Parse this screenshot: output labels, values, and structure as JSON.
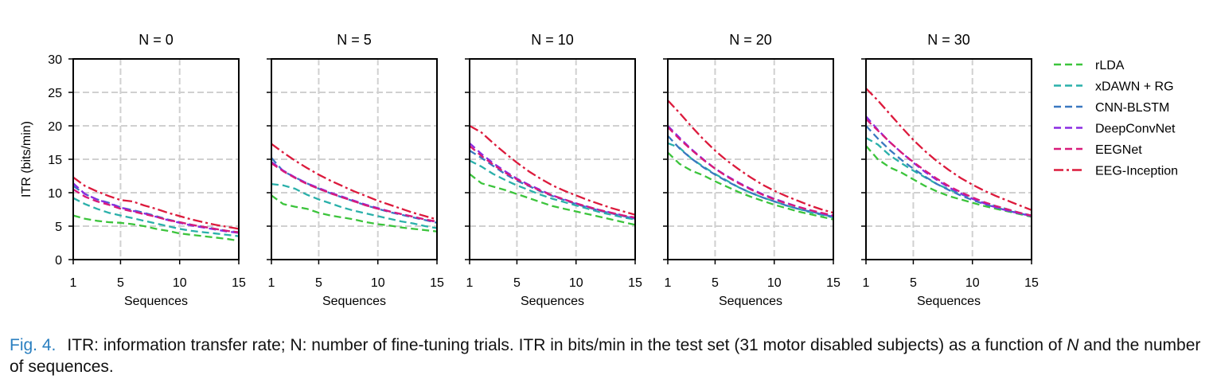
{
  "figure": {
    "ylabel": "ITR (bits/min)",
    "xlabel": "Sequences",
    "yticks": [
      0,
      5,
      10,
      15,
      20,
      25,
      30
    ],
    "xticks": [
      1,
      5,
      10,
      15
    ]
  },
  "caption": {
    "label": "Fig. 4.",
    "text_before": "ITR: information transfer rate; N: number of fine-tuning trials. ITR in bits/min in the test set (31 motor disabled subjects) as a function of",
    "italic_n": "N",
    "text_after": "and the number of sequences."
  },
  "legend": [
    {
      "name": "rLDA",
      "color": "#3cc43c",
      "dash": "dashed"
    },
    {
      "name": "xDAWN + RG",
      "color": "#2ab0aa",
      "dash": "dashed"
    },
    {
      "name": "CNN-BLSTM",
      "color": "#3a78c0",
      "dash": "dashed"
    },
    {
      "name": "DeepConvNet",
      "color": "#8a2be2",
      "dash": "dashed"
    },
    {
      "name": "EEGNet",
      "color": "#d81b7a",
      "dash": "dashed"
    },
    {
      "name": "EEG-Inception",
      "color": "#dc1a3c",
      "dash": "dashdot"
    }
  ],
  "chart_data": [
    {
      "type": "line",
      "title": "N = 0",
      "xlabel": "Sequences",
      "ylabel": "ITR (bits/min)",
      "x": [
        1,
        2,
        3,
        4,
        5,
        6,
        7,
        8,
        9,
        10,
        11,
        12,
        13,
        14,
        15
      ],
      "xlim": [
        1,
        15
      ],
      "ylim": [
        0,
        30
      ],
      "grid": true,
      "series": [
        {
          "name": "rLDA",
          "values": [
            6.6,
            6.1,
            5.8,
            5.6,
            5.5,
            5.3,
            5.0,
            4.6,
            4.3,
            3.9,
            3.7,
            3.5,
            3.3,
            3.1,
            2.8
          ]
        },
        {
          "name": "xDAWN + RG",
          "values": [
            9.2,
            8.3,
            7.6,
            7.0,
            6.6,
            6.2,
            5.8,
            5.4,
            5.0,
            4.6,
            4.3,
            4.1,
            3.9,
            3.7,
            3.5
          ]
        },
        {
          "name": "CNN-BLSTM",
          "values": [
            11.0,
            9.8,
            9.0,
            8.5,
            7.8,
            7.4,
            7.0,
            6.5,
            6.0,
            5.6,
            5.2,
            4.9,
            4.6,
            4.3,
            4.1
          ]
        },
        {
          "name": "DeepConvNet",
          "values": [
            11.4,
            9.8,
            9.0,
            8.4,
            7.8,
            7.3,
            6.9,
            6.4,
            5.9,
            5.5,
            5.1,
            4.8,
            4.5,
            4.2,
            4.0
          ]
        },
        {
          "name": "EEGNet",
          "values": [
            10.5,
            9.4,
            8.7,
            8.2,
            7.6,
            7.2,
            6.8,
            6.4,
            5.9,
            5.6,
            5.2,
            4.9,
            4.6,
            4.3,
            4.1
          ]
        },
        {
          "name": "EEG-Inception",
          "values": [
            12.3,
            11.0,
            10.2,
            9.5,
            8.9,
            8.7,
            8.1,
            7.6,
            7.0,
            6.5,
            6.0,
            5.6,
            5.2,
            4.9,
            4.6
          ]
        }
      ]
    },
    {
      "type": "line",
      "title": "N = 5",
      "xlabel": "Sequences",
      "ylabel": "ITR (bits/min)",
      "x": [
        1,
        2,
        3,
        4,
        5,
        6,
        7,
        8,
        9,
        10,
        11,
        12,
        13,
        14,
        15
      ],
      "xlim": [
        1,
        15
      ],
      "ylim": [
        0,
        30
      ],
      "grid": true,
      "series": [
        {
          "name": "rLDA",
          "values": [
            9.6,
            8.3,
            7.9,
            7.6,
            7.0,
            6.6,
            6.3,
            6.0,
            5.6,
            5.3,
            5.1,
            4.8,
            4.6,
            4.4,
            4.2
          ]
        },
        {
          "name": "xDAWN + RG",
          "values": [
            11.3,
            11.1,
            10.6,
            9.7,
            9.0,
            8.4,
            7.8,
            7.3,
            6.9,
            6.5,
            6.1,
            5.7,
            5.4,
            5.0,
            4.7
          ]
        },
        {
          "name": "CNN-BLSTM",
          "values": [
            15.2,
            13.2,
            12.3,
            11.4,
            10.6,
            9.9,
            9.3,
            8.7,
            8.1,
            7.6,
            7.1,
            6.7,
            6.3,
            5.9,
            5.5
          ]
        },
        {
          "name": "DeepConvNet",
          "values": [
            14.6,
            13.3,
            12.3,
            11.4,
            10.7,
            10.0,
            9.4,
            8.8,
            8.2,
            7.7,
            7.2,
            6.8,
            6.4,
            6.0,
            5.6
          ]
        },
        {
          "name": "EEGNet",
          "values": [
            14.4,
            13.2,
            12.2,
            11.3,
            10.6,
            9.9,
            9.3,
            8.7,
            8.1,
            7.6,
            7.2,
            6.8,
            6.4,
            6.0,
            5.7
          ]
        },
        {
          "name": "EEG-Inception",
          "values": [
            17.3,
            16.0,
            14.8,
            13.7,
            12.7,
            11.8,
            11.0,
            10.2,
            9.5,
            8.8,
            8.2,
            7.6,
            7.0,
            6.5,
            6.0
          ]
        }
      ]
    },
    {
      "type": "line",
      "title": "N = 10",
      "xlabel": "Sequences",
      "ylabel": "ITR (bits/min)",
      "x": [
        1,
        2,
        3,
        4,
        5,
        6,
        7,
        8,
        9,
        10,
        11,
        12,
        13,
        14,
        15
      ],
      "xlim": [
        1,
        15
      ],
      "ylim": [
        0,
        30
      ],
      "grid": true,
      "series": [
        {
          "name": "rLDA",
          "values": [
            12.8,
            11.4,
            10.9,
            10.4,
            9.8,
            9.2,
            8.6,
            8.0,
            7.6,
            7.2,
            6.8,
            6.4,
            6.0,
            5.6,
            5.2
          ]
        },
        {
          "name": "xDAWN + RG",
          "values": [
            14.8,
            13.9,
            12.8,
            11.9,
            11.1,
            10.4,
            9.7,
            9.1,
            8.6,
            8.1,
            7.6,
            7.1,
            6.7,
            6.3,
            6.0
          ]
        },
        {
          "name": "CNN-BLSTM",
          "values": [
            16.3,
            15.2,
            14.0,
            12.8,
            11.8,
            11.0,
            10.2,
            9.5,
            8.9,
            8.3,
            7.8,
            7.3,
            6.9,
            6.5,
            6.1
          ]
        },
        {
          "name": "DeepConvNet",
          "values": [
            17.4,
            15.8,
            14.4,
            13.2,
            12.1,
            11.2,
            10.4,
            9.6,
            9.0,
            8.4,
            7.9,
            7.4,
            7.0,
            6.6,
            6.2
          ]
        },
        {
          "name": "EEGNet",
          "values": [
            17.0,
            15.5,
            14.2,
            13.0,
            12.0,
            11.1,
            10.3,
            9.6,
            9.0,
            8.4,
            7.9,
            7.4,
            7.0,
            6.6,
            6.3
          ]
        },
        {
          "name": "EEG-Inception",
          "values": [
            20.0,
            19.0,
            17.4,
            15.9,
            14.5,
            13.2,
            12.1,
            11.1,
            10.3,
            9.6,
            8.9,
            8.3,
            7.7,
            7.2,
            6.7
          ]
        }
      ]
    },
    {
      "type": "line",
      "title": "N = 20",
      "xlabel": "Sequences",
      "ylabel": "ITR (bits/min)",
      "x": [
        1,
        2,
        3,
        4,
        5,
        6,
        7,
        8,
        9,
        10,
        11,
        12,
        13,
        14,
        15
      ],
      "xlim": [
        1,
        15
      ],
      "ylim": [
        0,
        30
      ],
      "grid": true,
      "series": [
        {
          "name": "rLDA",
          "values": [
            16.0,
            14.3,
            13.3,
            12.6,
            11.7,
            10.9,
            10.1,
            9.4,
            8.8,
            8.2,
            7.7,
            7.2,
            6.8,
            6.4,
            6.0
          ]
        },
        {
          "name": "xDAWN + RG",
          "values": [
            17.4,
            16.7,
            15.1,
            13.9,
            12.8,
            11.8,
            10.8,
            10.0,
            9.3,
            8.7,
            8.1,
            7.6,
            7.1,
            6.7,
            6.3
          ]
        },
        {
          "name": "CNN-BLSTM",
          "values": [
            18.5,
            16.6,
            15.1,
            13.8,
            12.7,
            11.7,
            10.8,
            10.0,
            9.3,
            8.7,
            8.1,
            7.6,
            7.2,
            6.8,
            6.4
          ]
        },
        {
          "name": "DeepConvNet",
          "values": [
            20.0,
            18.2,
            16.5,
            15.0,
            13.6,
            12.5,
            11.5,
            10.6,
            9.8,
            9.1,
            8.5,
            7.9,
            7.4,
            6.9,
            6.5
          ]
        },
        {
          "name": "EEGNet",
          "values": [
            19.8,
            18.0,
            16.4,
            14.9,
            13.6,
            12.4,
            11.4,
            10.5,
            9.7,
            9.0,
            8.4,
            7.9,
            7.4,
            7.0,
            6.6
          ]
        },
        {
          "name": "EEG-Inception",
          "values": [
            23.8,
            21.9,
            19.9,
            18.0,
            16.3,
            14.8,
            13.5,
            12.3,
            11.2,
            10.3,
            9.5,
            8.8,
            8.1,
            7.5,
            7.0
          ]
        }
      ]
    },
    {
      "type": "line",
      "title": "N = 30",
      "xlabel": "Sequences",
      "ylabel": "ITR (bits/min)",
      "x": [
        1,
        2,
        3,
        4,
        5,
        6,
        7,
        8,
        9,
        10,
        11,
        12,
        13,
        14,
        15
      ],
      "xlim": [
        1,
        15
      ],
      "ylim": [
        0,
        30
      ],
      "grid": true,
      "series": [
        {
          "name": "rLDA",
          "values": [
            17.0,
            15.0,
            13.8,
            13.0,
            12.0,
            11.0,
            10.2,
            9.5,
            9.0,
            8.5,
            8.0,
            7.6,
            7.2,
            6.8,
            6.4
          ]
        },
        {
          "name": "xDAWN + RG",
          "values": [
            18.2,
            17.2,
            15.6,
            14.4,
            13.3,
            12.3,
            11.3,
            10.5,
            9.8,
            9.1,
            8.5,
            8.0,
            7.5,
            7.0,
            6.6
          ]
        },
        {
          "name": "CNN-BLSTM",
          "values": [
            20.0,
            18.1,
            16.4,
            14.9,
            13.6,
            12.4,
            11.3,
            10.4,
            9.6,
            8.9,
            8.3,
            7.8,
            7.3,
            6.9,
            6.5
          ]
        },
        {
          "name": "DeepConvNet",
          "values": [
            21.4,
            19.4,
            17.6,
            16.0,
            14.5,
            13.1,
            11.9,
            10.8,
            9.9,
            9.1,
            8.4,
            7.8,
            7.3,
            6.9,
            6.5
          ]
        },
        {
          "name": "EEGNet",
          "values": [
            21.0,
            19.3,
            17.6,
            16.0,
            14.6,
            13.3,
            12.1,
            11.0,
            10.1,
            9.3,
            8.6,
            8.0,
            7.5,
            7.0,
            6.6
          ]
        },
        {
          "name": "EEG-Inception",
          "values": [
            25.6,
            23.8,
            21.8,
            19.8,
            17.9,
            16.2,
            14.7,
            13.4,
            12.2,
            11.2,
            10.3,
            9.5,
            8.8,
            8.1,
            7.4
          ]
        }
      ]
    }
  ]
}
